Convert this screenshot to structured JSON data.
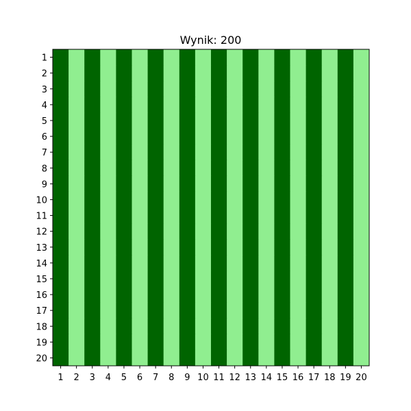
{
  "title": "Wynik: 200",
  "chart_data": {
    "type": "heatmap",
    "title": "Wynik: 200",
    "rows": 20,
    "cols": 20,
    "x_ticks": [
      "1",
      "2",
      "3",
      "4",
      "5",
      "6",
      "7",
      "8",
      "9",
      "10",
      "11",
      "12",
      "13",
      "14",
      "15",
      "16",
      "17",
      "18",
      "19",
      "20"
    ],
    "y_ticks": [
      "1",
      "2",
      "3",
      "4",
      "5",
      "6",
      "7",
      "8",
      "9",
      "10",
      "11",
      "12",
      "13",
      "14",
      "15",
      "16",
      "17",
      "18",
      "19",
      "20"
    ],
    "column_values": [
      1,
      0,
      1,
      0,
      1,
      0,
      1,
      0,
      1,
      0,
      1,
      0,
      1,
      0,
      1,
      0,
      1,
      0,
      1,
      0
    ],
    "colors": {
      "1": "#006400",
      "0": "#90ee90"
    },
    "grid": false,
    "legend": "none"
  }
}
